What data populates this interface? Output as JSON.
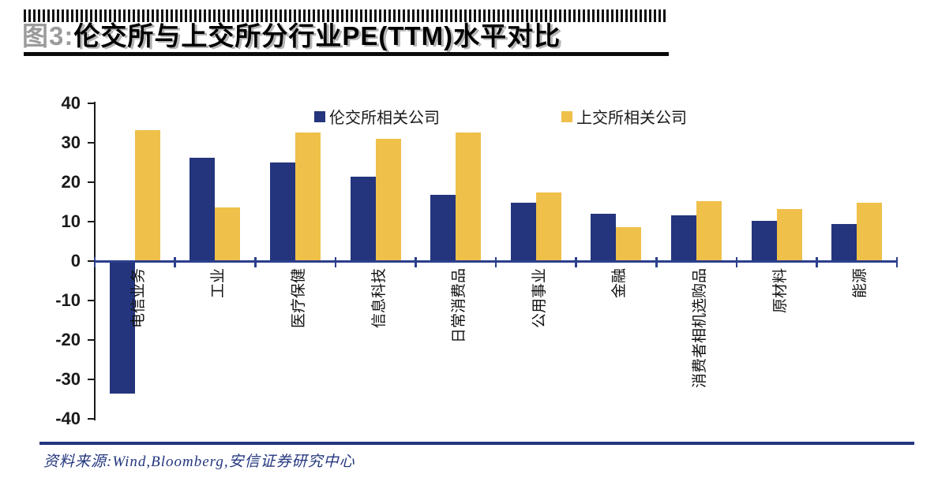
{
  "header": {
    "figure_label": "图3:",
    "title": "伦交所与上交所分行业PE(TTM)水平对比"
  },
  "legend": [
    {
      "label": "伦交所相关公司",
      "color": "#24357d"
    },
    {
      "label": "上交所相关公司",
      "color": "#efc04a"
    }
  ],
  "chart_data": {
    "type": "bar",
    "title": "伦交所与上交所分行业PE(TTM)水平对比",
    "categories": [
      "电信业务",
      "工业",
      "医疗保健",
      "信息科技",
      "日常消费品",
      "公用事业",
      "金融",
      "消费者相机选购品",
      "原材料",
      "能源"
    ],
    "series": [
      {
        "name": "伦交所相关公司",
        "color": "#24357d",
        "values": [
          -33.5,
          26.2,
          25.0,
          21.4,
          16.8,
          14.8,
          12.1,
          11.7,
          10.2,
          9.4
        ]
      },
      {
        "name": "上交所相关公司",
        "color": "#efc04a",
        "values": [
          33.3,
          13.7,
          32.6,
          31.0,
          32.7,
          17.5,
          8.7,
          15.3,
          13.3,
          14.9
        ]
      }
    ],
    "ylim": [
      -40,
      40
    ],
    "yticks": [
      40,
      30,
      20,
      10,
      0,
      -10,
      -20,
      -30,
      -40
    ],
    "grid": "off",
    "legend_position": "top",
    "xlabel": "",
    "ylabel": ""
  },
  "footer": {
    "source": "资料来源:Wind,Bloomberg,安信证券研究中心"
  }
}
